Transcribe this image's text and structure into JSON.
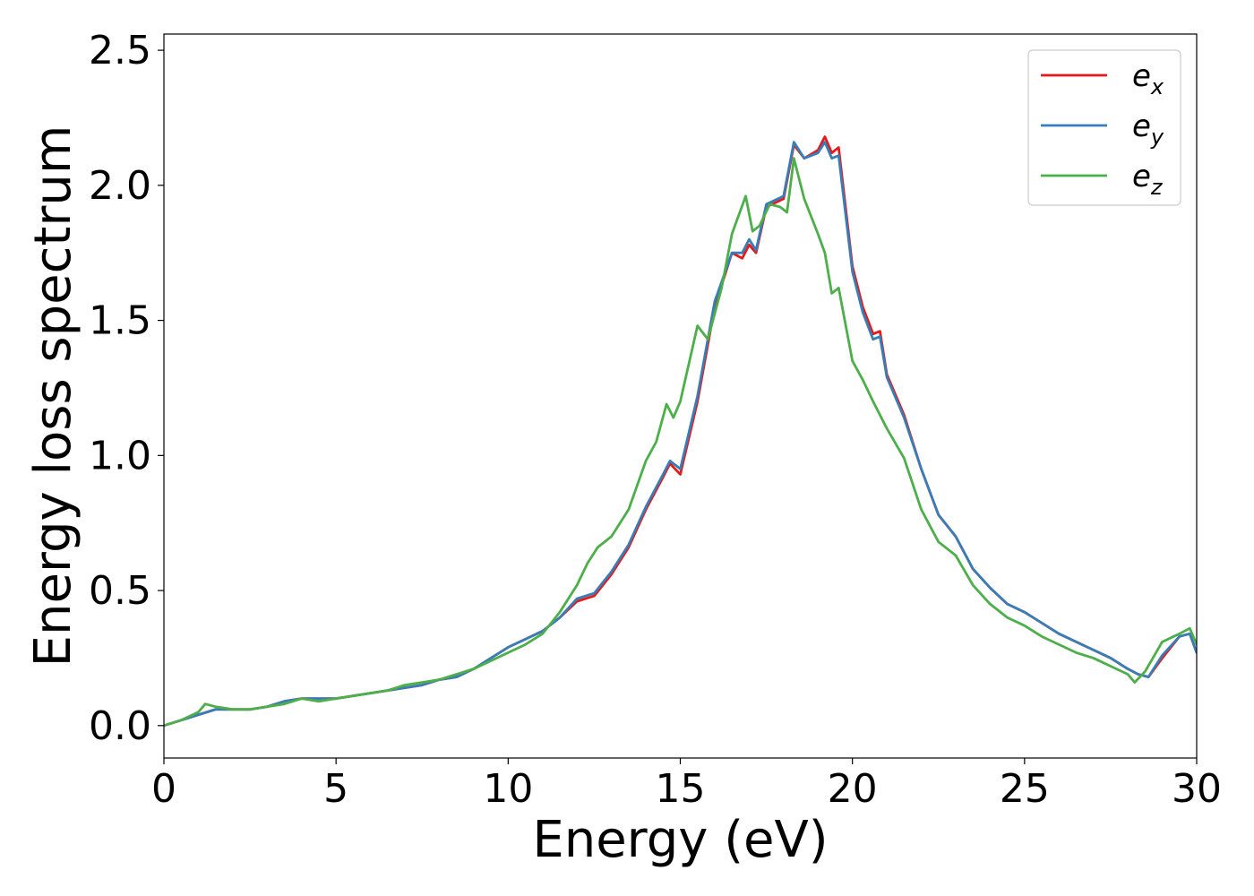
{
  "chart_data": {
    "type": "line",
    "xlabel": "Energy (eV)",
    "ylabel": "Energy loss spectrum",
    "xlim": [
      0,
      30
    ],
    "ylim": [
      -0.12,
      2.56
    ],
    "xticks": [
      0,
      5,
      10,
      15,
      20,
      25,
      30
    ],
    "xtick_labels": [
      "0",
      "5",
      "10",
      "15",
      "20",
      "25",
      "30"
    ],
    "yticks": [
      0.0,
      0.5,
      1.0,
      1.5,
      2.0,
      2.5
    ],
    "ytick_labels": [
      "0.0",
      "0.5",
      "1.0",
      "1.5",
      "2.0",
      "2.5"
    ],
    "grid": false,
    "legend_position": "top-right",
    "series": [
      {
        "name": "e",
        "name_sub": "x",
        "color": "#e41a1c",
        "x": [
          0,
          0.5,
          1,
          1.5,
          2,
          2.5,
          3,
          3.5,
          4,
          4.5,
          5,
          5.5,
          6,
          6.5,
          7,
          7.5,
          8,
          8.5,
          9,
          9.5,
          10,
          10.5,
          11,
          11.5,
          12,
          12.5,
          13,
          13.5,
          14,
          14.5,
          14.7,
          15,
          15.5,
          16,
          16.5,
          16.8,
          17,
          17.2,
          17.5,
          18,
          18.3,
          18.6,
          19,
          19.2,
          19.4,
          19.6,
          20,
          20.3,
          20.6,
          20.8,
          21,
          21.5,
          22,
          22.5,
          23,
          23.5,
          24,
          24.5,
          25,
          25.5,
          26,
          26.5,
          27,
          27.5,
          28,
          28.3,
          28.6,
          29,
          29.5,
          29.8,
          30
        ],
        "y": [
          0.0,
          0.02,
          0.04,
          0.06,
          0.06,
          0.06,
          0.07,
          0.09,
          0.1,
          0.1,
          0.1,
          0.11,
          0.12,
          0.13,
          0.14,
          0.15,
          0.17,
          0.18,
          0.21,
          0.25,
          0.29,
          0.32,
          0.35,
          0.4,
          0.46,
          0.48,
          0.56,
          0.66,
          0.8,
          0.92,
          0.97,
          0.93,
          1.2,
          1.55,
          1.75,
          1.73,
          1.78,
          1.75,
          1.92,
          1.95,
          2.15,
          2.1,
          2.13,
          2.18,
          2.12,
          2.14,
          1.7,
          1.55,
          1.45,
          1.46,
          1.3,
          1.15,
          0.95,
          0.78,
          0.7,
          0.58,
          0.51,
          0.45,
          0.42,
          0.38,
          0.34,
          0.31,
          0.28,
          0.25,
          0.21,
          0.19,
          0.18,
          0.25,
          0.33,
          0.34,
          0.27
        ]
      },
      {
        "name": "e",
        "name_sub": "y",
        "color": "#377eb8",
        "x": [
          0,
          0.5,
          1,
          1.5,
          2,
          2.5,
          3,
          3.5,
          4,
          4.5,
          5,
          5.5,
          6,
          6.5,
          7,
          7.5,
          8,
          8.5,
          9,
          9.5,
          10,
          10.5,
          11,
          11.5,
          12,
          12.5,
          13,
          13.5,
          14,
          14.5,
          14.7,
          15,
          15.5,
          16,
          16.5,
          16.8,
          17,
          17.2,
          17.5,
          18,
          18.3,
          18.6,
          19,
          19.2,
          19.4,
          19.6,
          20,
          20.3,
          20.6,
          20.8,
          21,
          21.5,
          22,
          22.5,
          23,
          23.5,
          24,
          24.5,
          25,
          25.5,
          26,
          26.5,
          27,
          27.5,
          28,
          28.3,
          28.6,
          29,
          29.5,
          29.8,
          30
        ],
        "y": [
          0.0,
          0.02,
          0.04,
          0.06,
          0.06,
          0.06,
          0.07,
          0.09,
          0.1,
          0.1,
          0.1,
          0.11,
          0.12,
          0.13,
          0.14,
          0.15,
          0.17,
          0.18,
          0.21,
          0.25,
          0.29,
          0.32,
          0.35,
          0.4,
          0.47,
          0.49,
          0.57,
          0.67,
          0.81,
          0.93,
          0.98,
          0.95,
          1.22,
          1.57,
          1.75,
          1.75,
          1.8,
          1.76,
          1.93,
          1.96,
          2.16,
          2.1,
          2.12,
          2.16,
          2.1,
          2.11,
          1.68,
          1.53,
          1.43,
          1.44,
          1.29,
          1.14,
          0.95,
          0.78,
          0.7,
          0.58,
          0.51,
          0.45,
          0.42,
          0.38,
          0.34,
          0.31,
          0.28,
          0.25,
          0.21,
          0.19,
          0.18,
          0.26,
          0.33,
          0.34,
          0.27
        ]
      },
      {
        "name": "e",
        "name_sub": "z",
        "color": "#4daf4a",
        "x": [
          0,
          0.5,
          1,
          1.2,
          1.5,
          2,
          2.5,
          3,
          3.5,
          4,
          4.5,
          5,
          5.5,
          6,
          6.5,
          7,
          7.5,
          8,
          8.5,
          9,
          9.5,
          10,
          10.5,
          11,
          11.5,
          12,
          12.3,
          12.6,
          13,
          13.5,
          14,
          14.3,
          14.6,
          14.8,
          15,
          15.5,
          15.8,
          16.2,
          16.5,
          16.9,
          17.1,
          17.3,
          17.6,
          17.9,
          18.1,
          18.3,
          18.6,
          19,
          19.2,
          19.4,
          19.6,
          20,
          20.3,
          20.6,
          21,
          21.5,
          22,
          22.5,
          23,
          23.5,
          24,
          24.5,
          25,
          25.5,
          26,
          26.5,
          27,
          27.5,
          28,
          28.2,
          28.5,
          29,
          29.5,
          29.8,
          30
        ],
        "y": [
          0.0,
          0.02,
          0.05,
          0.08,
          0.07,
          0.06,
          0.06,
          0.07,
          0.08,
          0.1,
          0.09,
          0.1,
          0.11,
          0.12,
          0.13,
          0.15,
          0.16,
          0.17,
          0.19,
          0.21,
          0.24,
          0.27,
          0.3,
          0.34,
          0.42,
          0.52,
          0.6,
          0.66,
          0.7,
          0.8,
          0.98,
          1.05,
          1.19,
          1.14,
          1.2,
          1.48,
          1.43,
          1.62,
          1.82,
          1.96,
          1.83,
          1.85,
          1.93,
          1.92,
          1.9,
          2.1,
          1.95,
          1.82,
          1.75,
          1.6,
          1.62,
          1.35,
          1.28,
          1.2,
          1.1,
          0.99,
          0.8,
          0.68,
          0.63,
          0.52,
          0.45,
          0.4,
          0.37,
          0.33,
          0.3,
          0.27,
          0.25,
          0.22,
          0.19,
          0.16,
          0.2,
          0.31,
          0.34,
          0.36,
          0.3
        ]
      }
    ]
  }
}
